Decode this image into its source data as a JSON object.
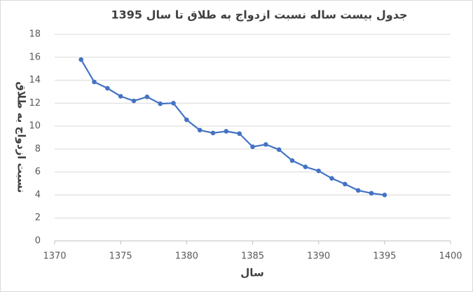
{
  "chart_data": {
    "type": "line",
    "title": "جدول بیست ساله نسبت ازدواج به طلاق تا سال 1395",
    "x_label": "سال",
    "y_label": "نسبت ازدواج به طلاق",
    "x": [
      1372,
      1373,
      1374,
      1375,
      1376,
      1377,
      1378,
      1379,
      1380,
      1381,
      1382,
      1383,
      1384,
      1385,
      1386,
      1387,
      1388,
      1389,
      1390,
      1391,
      1392,
      1393,
      1394,
      1395
    ],
    "series": [
      {
        "color": "#4472c4",
        "values": [
          15.8,
          13.85,
          13.3,
          12.6,
          12.2,
          12.55,
          11.95,
          12.0,
          10.55,
          9.65,
          9.4,
          9.55,
          9.35,
          8.2,
          8.4,
          7.95,
          7.0,
          6.45,
          6.1,
          5.45,
          4.95,
          4.4,
          4.15,
          4.0
        ]
      }
    ],
    "xlim": [
      1370,
      1400
    ],
    "xticks": [
      1370,
      1375,
      1380,
      1385,
      1390,
      1395,
      1400
    ],
    "ylim": [
      0,
      18
    ],
    "yticks": [
      0,
      2,
      4,
      6,
      8,
      10,
      12,
      14,
      16,
      18
    ],
    "grid": true
  }
}
